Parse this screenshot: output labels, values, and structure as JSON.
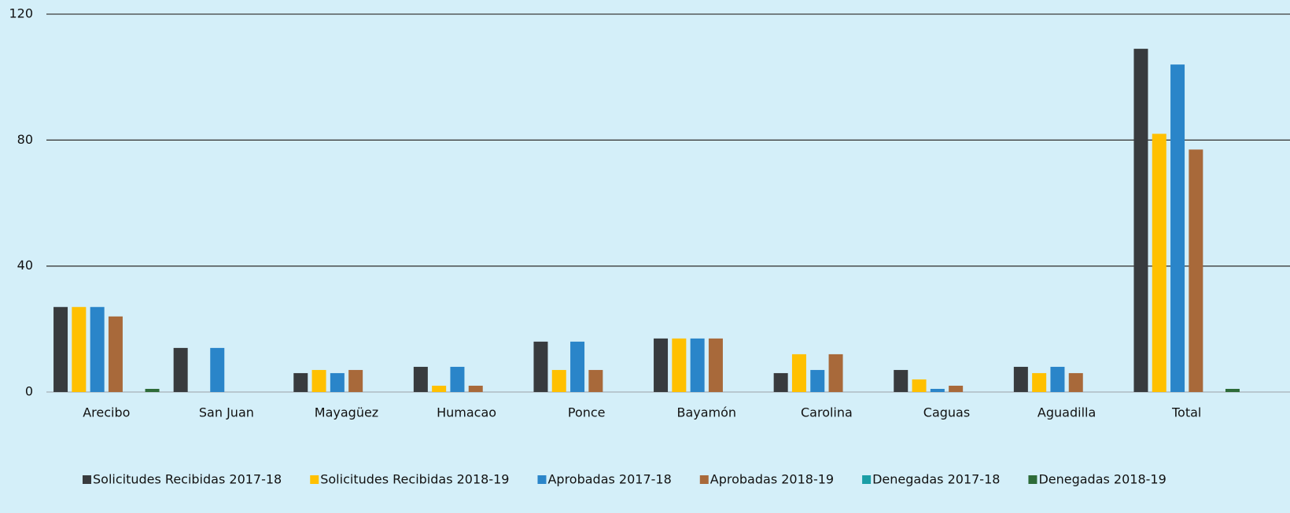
{
  "chart_data": {
    "type": "bar",
    "categories": [
      "Arecibo",
      "San Juan",
      "Mayagüez",
      "Humacao",
      "Ponce",
      "Bayamón",
      "Carolina",
      "Caguas",
      "Aguadilla",
      "Total"
    ],
    "series": [
      {
        "name": "Solicitudes Recibidas 2017-18",
        "color": "#383b3e",
        "values": [
          27,
          14,
          6,
          8,
          16,
          17,
          6,
          7,
          8,
          109
        ]
      },
      {
        "name": "Solicitudes Recibidas 2018-19",
        "color": "#ffc000",
        "values": [
          27,
          0,
          7,
          2,
          7,
          17,
          12,
          4,
          6,
          82
        ]
      },
      {
        "name": "Aprobadas 2017-18",
        "color": "#2a85c9",
        "values": [
          27,
          14,
          6,
          8,
          16,
          17,
          7,
          1,
          8,
          104
        ]
      },
      {
        "name": "Aprobadas 2018-19",
        "color": "#a8693a",
        "values": [
          24,
          0,
          7,
          2,
          7,
          17,
          12,
          2,
          6,
          77
        ]
      },
      {
        "name": "Denegadas 2017-18",
        "color": "#1a9ea6",
        "values": [
          0,
          0,
          0,
          0,
          0,
          0,
          0,
          0,
          0,
          0
        ]
      },
      {
        "name": "Denegadas 2018-19",
        "color": "#2d6b38",
        "values": [
          1,
          0,
          0,
          0,
          0,
          0,
          0,
          0,
          0,
          1
        ]
      }
    ],
    "ylim": [
      0,
      120
    ],
    "yticks": [
      0,
      40,
      80,
      120
    ],
    "grid": true,
    "legend": "bottom"
  }
}
